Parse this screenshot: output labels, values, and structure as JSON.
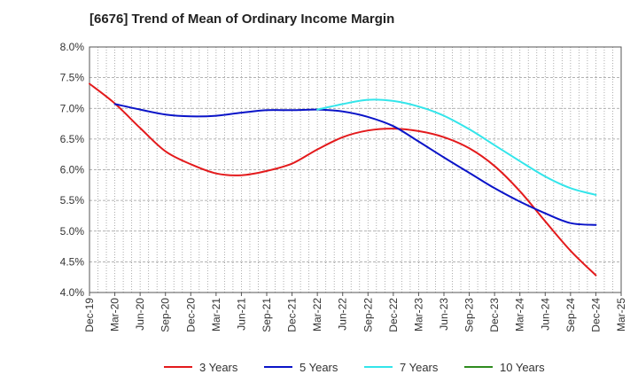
{
  "chart_data": {
    "type": "line",
    "title": "[6676]  Trend of Mean of Ordinary Income Margin",
    "xlabel": "",
    "ylabel": "",
    "ylim": [
      4.0,
      8.0
    ],
    "y_ticks": [
      "4.0%",
      "4.5%",
      "5.0%",
      "5.5%",
      "6.0%",
      "6.5%",
      "7.0%",
      "7.5%",
      "8.0%"
    ],
    "x_ticks": [
      "Dec-19",
      "Mar-20",
      "Jun-20",
      "Sep-20",
      "Dec-20",
      "Mar-21",
      "Jun-21",
      "Sep-21",
      "Dec-21",
      "Mar-22",
      "Jun-22",
      "Sep-22",
      "Dec-22",
      "Mar-23",
      "Jun-23",
      "Sep-23",
      "Dec-23",
      "Mar-24",
      "Jun-24",
      "Sep-24",
      "Dec-24",
      "Mar-25"
    ],
    "grid": true,
    "legend_position": "bottom",
    "series": [
      {
        "name": "3 Years",
        "color": "#e31a1c",
        "x": [
          "Dec-19",
          "Mar-20",
          "Jun-20",
          "Sep-20",
          "Dec-20",
          "Mar-21",
          "Jun-21",
          "Sep-21",
          "Dec-21",
          "Mar-22",
          "Jun-22",
          "Sep-22",
          "Dec-22",
          "Mar-23",
          "Jun-23",
          "Sep-23",
          "Dec-23",
          "Mar-24",
          "Jun-24",
          "Sep-24",
          "Dec-24"
        ],
        "values": [
          7.4,
          7.08,
          6.68,
          6.3,
          6.09,
          5.94,
          5.91,
          5.98,
          6.1,
          6.33,
          6.53,
          6.64,
          6.67,
          6.63,
          6.53,
          6.35,
          6.06,
          5.65,
          5.16,
          4.68,
          4.28
        ]
      },
      {
        "name": "5 Years",
        "color": "#0a14c8",
        "x": [
          "Mar-20",
          "Jun-20",
          "Sep-20",
          "Dec-20",
          "Mar-21",
          "Jun-21",
          "Sep-21",
          "Dec-21",
          "Mar-22",
          "Jun-22",
          "Sep-22",
          "Dec-22",
          "Mar-23",
          "Jun-23",
          "Sep-23",
          "Dec-23",
          "Mar-24",
          "Jun-24",
          "Sep-24",
          "Dec-24"
        ],
        "values": [
          7.07,
          6.98,
          6.9,
          6.87,
          6.88,
          6.93,
          6.97,
          6.97,
          6.98,
          6.95,
          6.86,
          6.71,
          6.46,
          6.2,
          5.95,
          5.7,
          5.48,
          5.29,
          5.13,
          5.1
        ]
      },
      {
        "name": "7 Years",
        "color": "#33e5ea",
        "x": [
          "Mar-22",
          "Jun-22",
          "Sep-22",
          "Dec-22",
          "Mar-23",
          "Jun-23",
          "Sep-23",
          "Dec-23",
          "Mar-24",
          "Jun-24",
          "Sep-24",
          "Dec-24"
        ],
        "values": [
          6.98,
          7.07,
          7.14,
          7.12,
          7.03,
          6.88,
          6.66,
          6.4,
          6.14,
          5.89,
          5.7,
          5.59
        ]
      },
      {
        "name": "10 Years",
        "color": "#2e8b1e",
        "x": [],
        "values": []
      }
    ]
  }
}
